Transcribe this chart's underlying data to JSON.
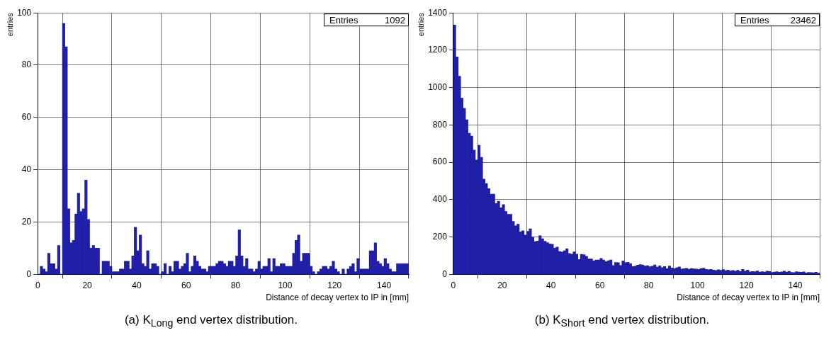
{
  "chart_data": [
    {
      "type": "histogram",
      "title": "(a) K$_{Long}$ end vertex distribution.",
      "xlabel": "Distance of decay vertex to IP in [mm]",
      "ylabel": "entries",
      "color": "#1f1fa8",
      "annotations": [
        "Entries 1092"
      ],
      "grid": true,
      "legend": false,
      "bins": [
        0,
        1,
        2,
        3,
        4,
        5,
        6,
        7,
        8,
        9,
        10,
        11,
        12,
        13,
        14,
        15,
        16,
        17,
        18,
        19,
        20,
        21,
        22,
        23,
        24,
        25,
        26,
        27,
        28,
        29,
        30,
        31,
        32,
        33,
        34,
        35,
        36,
        37,
        38,
        39,
        40,
        41,
        42,
        43,
        44,
        45,
        46,
        47,
        48,
        49,
        50,
        51,
        52,
        53,
        54,
        55,
        56,
        57,
        58,
        59,
        60,
        61,
        62,
        63,
        64,
        65,
        66,
        67,
        68,
        69,
        70,
        71,
        72,
        73,
        74,
        75,
        76,
        77,
        78,
        79,
        80,
        81,
        82,
        83,
        84,
        85,
        86,
        87,
        88,
        89,
        90,
        91,
        92,
        93,
        94,
        95,
        96,
        97,
        98,
        99,
        100,
        101,
        102,
        103,
        104,
        105,
        106,
        107,
        108,
        109,
        110,
        111,
        112,
        113,
        114,
        115,
        116,
        117,
        118,
        119,
        120,
        121,
        122,
        123,
        124,
        125,
        126,
        127,
        128,
        129,
        130,
        131,
        132,
        133,
        134,
        135,
        136,
        137,
        138,
        139,
        140,
        141,
        142,
        143,
        144,
        145,
        146,
        147,
        148,
        149,
        150
      ],
      "values": [
        0,
        3,
        2,
        1,
        8,
        4,
        4,
        2,
        11,
        0,
        96,
        87,
        25,
        12,
        13,
        23,
        31,
        24,
        25,
        36,
        21,
        10,
        11,
        10,
        10,
        0,
        5,
        5,
        5,
        3,
        1,
        1,
        1,
        2,
        2,
        5,
        5,
        2,
        7,
        18,
        9,
        15,
        4,
        3,
        9,
        2,
        4,
        4,
        3,
        0,
        1,
        4,
        0,
        3,
        1,
        5,
        5,
        2,
        3,
        4,
        8,
        1,
        3,
        7,
        5,
        3,
        2,
        2,
        1,
        3,
        3,
        3,
        4,
        5,
        5,
        4,
        3,
        5,
        5,
        3,
        7,
        17,
        7,
        3,
        6,
        2,
        2,
        1,
        2,
        5,
        2,
        3,
        3,
        6,
        1,
        6,
        3,
        3,
        4,
        4,
        3,
        3,
        3,
        8,
        13,
        15,
        5,
        8,
        8,
        8,
        3,
        1,
        0,
        1,
        2,
        3,
        3,
        2,
        3,
        5,
        2,
        1,
        0,
        2,
        0,
        2,
        3,
        4,
        1,
        6,
        2,
        2,
        2,
        2,
        9,
        9,
        12,
        5,
        4,
        3,
        6,
        4,
        2,
        1,
        1,
        4,
        4,
        4,
        4,
        4
      ],
      "xlim": [
        0,
        150
      ],
      "xticks": [
        0,
        20,
        40,
        60,
        80,
        100,
        120,
        140
      ],
      "ylim": [
        0,
        100
      ],
      "yticks": [
        0,
        20,
        40,
        60,
        80,
        100
      ]
    },
    {
      "type": "histogram",
      "title": "(b) K$_{Short}$ end vertex distribution.",
      "xlabel": "Distance of decay vertex to IP in [mm]",
      "ylabel": "entries",
      "color": "#1f1fa8",
      "annotations": [
        "Entries 23462"
      ],
      "grid": true,
      "legend": false,
      "bins": [
        0,
        1,
        2,
        3,
        4,
        5,
        6,
        7,
        8,
        9,
        10,
        11,
        12,
        13,
        14,
        15,
        16,
        17,
        18,
        19,
        20,
        21,
        22,
        23,
        24,
        25,
        26,
        27,
        28,
        29,
        30,
        31,
        32,
        33,
        34,
        35,
        36,
        37,
        38,
        39,
        40,
        41,
        42,
        43,
        44,
        45,
        46,
        47,
        48,
        49,
        50,
        51,
        52,
        53,
        54,
        55,
        56,
        57,
        58,
        59,
        60,
        61,
        62,
        63,
        64,
        65,
        66,
        67,
        68,
        69,
        70,
        71,
        72,
        73,
        74,
        75,
        76,
        77,
        78,
        79,
        80,
        81,
        82,
        83,
        84,
        85,
        86,
        87,
        88,
        89,
        90,
        91,
        92,
        93,
        94,
        95,
        96,
        97,
        98,
        99,
        100,
        101,
        102,
        103,
        104,
        105,
        106,
        107,
        108,
        109,
        110,
        111,
        112,
        113,
        114,
        115,
        116,
        117,
        118,
        119,
        120,
        121,
        122,
        123,
        124,
        125,
        126,
        127,
        128,
        129,
        130,
        131,
        132,
        133,
        134,
        135,
        136,
        137,
        138,
        139,
        140,
        141,
        142,
        143,
        144,
        145,
        146,
        147,
        148,
        149,
        150
      ],
      "values": [
        1335,
        1164,
        1061,
        943,
        889,
        828,
        755,
        740,
        665,
        612,
        691,
        626,
        510,
        486,
        459,
        429,
        429,
        379,
        391,
        356,
        373,
        336,
        321,
        321,
        283,
        259,
        268,
        227,
        233,
        210,
        230,
        243,
        198,
        175,
        178,
        206,
        190,
        177,
        169,
        163,
        161,
        140,
        146,
        122,
        119,
        126,
        136,
        111,
        108,
        120,
        108,
        79,
        107,
        105,
        96,
        82,
        82,
        72,
        76,
        76,
        85,
        76,
        68,
        73,
        76,
        47,
        63,
        62,
        47,
        72,
        62,
        64,
        56,
        41,
        43,
        49,
        52,
        50,
        44,
        46,
        40,
        43,
        50,
        38,
        45,
        36,
        41,
        30,
        44,
        34,
        30,
        35,
        39,
        28,
        30,
        32,
        27,
        31,
        29,
        28,
        26,
        31,
        33,
        26,
        24,
        26,
        22,
        20,
        24,
        21,
        25,
        19,
        22,
        18,
        20,
        17,
        21,
        15,
        26,
        17,
        22,
        13,
        15,
        14,
        18,
        12,
        14,
        12,
        17,
        15,
        10,
        12,
        14,
        11,
        13,
        17,
        12,
        16,
        10,
        9,
        14,
        12,
        11,
        13,
        7,
        10,
        9,
        8,
        11,
        6
      ],
      "xlim": [
        0,
        150
      ],
      "xticks": [
        0,
        20,
        40,
        60,
        80,
        100,
        120,
        140
      ],
      "ylim": [
        0,
        1400
      ],
      "yticks": [
        0,
        200,
        400,
        600,
        800,
        1000,
        1200,
        1400
      ]
    }
  ]
}
